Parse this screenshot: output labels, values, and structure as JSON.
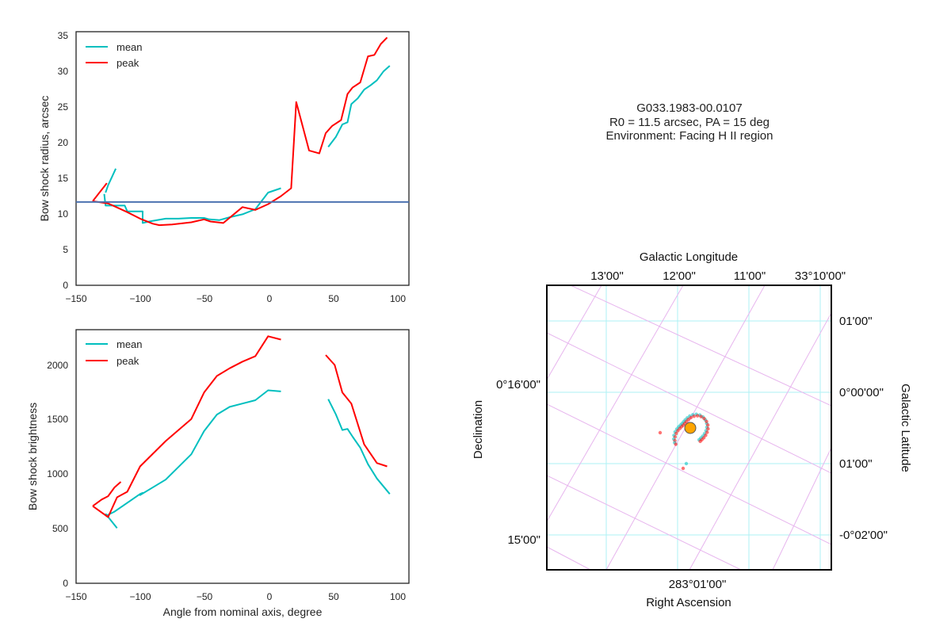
{
  "chart_data": [
    {
      "type": "line",
      "ylabel": "Bow shock radius, arcsec",
      "xlim": [
        -150,
        110
      ],
      "ylim": [
        0,
        35
      ],
      "xticks": [
        "−150",
        "−100",
        "−50",
        "0",
        "50",
        "100"
      ],
      "yticks": [
        "0",
        "5",
        "10",
        "15",
        "20",
        "25",
        "30",
        "35"
      ],
      "legend": [
        "mean",
        "peak"
      ],
      "hline": 11.5,
      "series": [
        {
          "name": "mean",
          "color": "#00bfbf",
          "segments": [
            [
              [
                -127,
                12.8
              ],
              [
                -125,
                13.8
              ],
              [
                -119,
                16.1
              ]
            ],
            [
              [
                -128,
                12.6
              ],
              [
                -127,
                11.0
              ],
              [
                -124,
                11.0
              ],
              [
                -112,
                11.0
              ],
              [
                -110,
                10.2
              ],
              [
                -98,
                10.2
              ],
              [
                -98,
                8.6
              ],
              [
                -93,
                8.8
              ],
              [
                -80,
                9.2
              ],
              [
                -70,
                9.2
              ],
              [
                -60,
                9.3
              ],
              [
                -50,
                9.3
              ],
              [
                -46,
                9.1
              ],
              [
                -46,
                9.1
              ],
              [
                -38,
                9.0
              ],
              [
                -30,
                9.4
              ],
              [
                -20,
                9.8
              ],
              [
                -10,
                10.5
              ],
              [
                0,
                12.8
              ],
              [
                10,
                13.4
              ]
            ],
            [
              [
                47,
                19.1
              ],
              [
                53,
                20.5
              ],
              [
                58,
                22.2
              ],
              [
                62,
                22.5
              ],
              [
                65,
                25.0
              ],
              [
                70,
                25.8
              ],
              [
                75,
                27.0
              ],
              [
                80,
                27.6
              ],
              [
                85,
                28.3
              ],
              [
                90,
                29.5
              ],
              [
                95,
                30.3
              ]
            ]
          ]
        },
        {
          "name": "peak",
          "color": "#ff0000",
          "segments": [
            [
              [
                -137,
                11.6
              ],
              [
                -126,
                14.1
              ]
            ],
            [
              [
                -137,
                11.6
              ],
              [
                -125,
                11.3
              ],
              [
                -120,
                10.9
              ],
              [
                -110,
                10.1
              ],
              [
                -100,
                9.2
              ],
              [
                -90,
                8.5
              ],
              [
                -85,
                8.3
              ],
              [
                -75,
                8.4
              ],
              [
                -60,
                8.7
              ],
              [
                -50,
                9.1
              ],
              [
                -45,
                8.8
              ],
              [
                -35,
                8.6
              ],
              [
                -20,
                10.8
              ],
              [
                -10,
                10.4
              ],
              [
                0,
                11.2
              ],
              [
                10,
                12.3
              ],
              [
                18,
                13.4
              ],
              [
                22,
                25.3
              ],
              [
                32,
                18.6
              ],
              [
                40,
                18.2
              ],
              [
                45,
                21.0
              ],
              [
                50,
                22.0
              ],
              [
                57,
                22.8
              ],
              [
                62,
                26.4
              ],
              [
                66,
                27.3
              ],
              [
                72,
                28.0
              ],
              [
                78,
                31.6
              ],
              [
                83,
                31.8
              ],
              [
                88,
                33.3
              ],
              [
                93,
                34.2
              ]
            ]
          ]
        }
      ]
    },
    {
      "type": "line",
      "xlabel": "Angle from nominal axis, degree",
      "ylabel": "Bow shock brightness",
      "xlim": [
        -150,
        110
      ],
      "ylim": [
        0,
        2300
      ],
      "xticks": [
        "−150",
        "−100",
        "−50",
        "0",
        "50",
        "100"
      ],
      "yticks": [
        "0",
        "500",
        "1000",
        "1500",
        "2000"
      ],
      "legend": [
        "mean",
        "peak"
      ],
      "series": [
        {
          "name": "mean",
          "color": "#00bfbf",
          "segments": [
            [
              [
                -127,
                630
              ],
              [
                -118,
                500
              ]
            ],
            [
              [
                -127,
                610
              ],
              [
                -120,
                650
              ],
              [
                -100,
                810
              ],
              [
                -98,
                820
              ],
              [
                -100,
                800
              ],
              [
                -80,
                940
              ],
              [
                -60,
                1170
              ],
              [
                -50,
                1380
              ],
              [
                -40,
                1530
              ],
              [
                -30,
                1600
              ],
              [
                -20,
                1630
              ],
              [
                -10,
                1660
              ],
              [
                0,
                1750
              ],
              [
                10,
                1740
              ]
            ],
            [
              [
                47,
                1670
              ],
              [
                53,
                1530
              ],
              [
                58,
                1390
              ],
              [
                62,
                1400
              ],
              [
                66,
                1330
              ],
              [
                72,
                1230
              ],
              [
                78,
                1080
              ],
              [
                85,
                950
              ],
              [
                95,
                810
              ]
            ]
          ]
        },
        {
          "name": "peak",
          "color": "#ff0000",
          "segments": [
            [
              [
                -137,
                700
              ],
              [
                -125,
                600
              ],
              [
                -118,
                780
              ],
              [
                -110,
                830
              ],
              [
                -100,
                1060
              ],
              [
                -80,
                1290
              ],
              [
                -60,
                1490
              ],
              [
                -50,
                1730
              ],
              [
                -40,
                1880
              ],
              [
                -30,
                1950
              ],
              [
                -20,
                2010
              ],
              [
                -10,
                2060
              ],
              [
                0,
                2240
              ],
              [
                10,
                2210
              ]
            ],
            [
              [
                -137,
                700
              ],
              [
                -130,
                760
              ],
              [
                -125,
                790
              ],
              [
                -120,
                870
              ],
              [
                -115,
                920
              ]
            ],
            [
              [
                45,
                2070
              ],
              [
                52,
                1980
              ],
              [
                58,
                1730
              ],
              [
                65,
                1630
              ],
              [
                75,
                1260
              ],
              [
                85,
                1090
              ],
              [
                93,
                1060
              ]
            ]
          ]
        }
      ]
    }
  ],
  "info": {
    "line1": "G033.1983-00.0107",
    "line2": "R0 = 11.5 arcsec, PA = 15 deg",
    "line3": "Environment: Facing H II region"
  },
  "sky": {
    "top_axis_label": "Galactic Longitude",
    "top_ticks": [
      "13'00\"",
      "12'00\"",
      "11'00\"",
      "33°10'00\""
    ],
    "right_axis_label": "Galactic Latitude",
    "right_ticks": [
      "01'00\"",
      "0°00'00\"",
      "01'00\"",
      "-0°02'00\""
    ],
    "left_axis_label": "Declination",
    "left_ticks": [
      "0°16'00\"",
      "15'00\""
    ],
    "bottom_axis_label": "Right Ascension",
    "bottom_ticks": [
      "283°01'00\""
    ],
    "source_color": "#ffa500",
    "mean_color": "#00bfbf",
    "peak_color": "#ff0000"
  }
}
